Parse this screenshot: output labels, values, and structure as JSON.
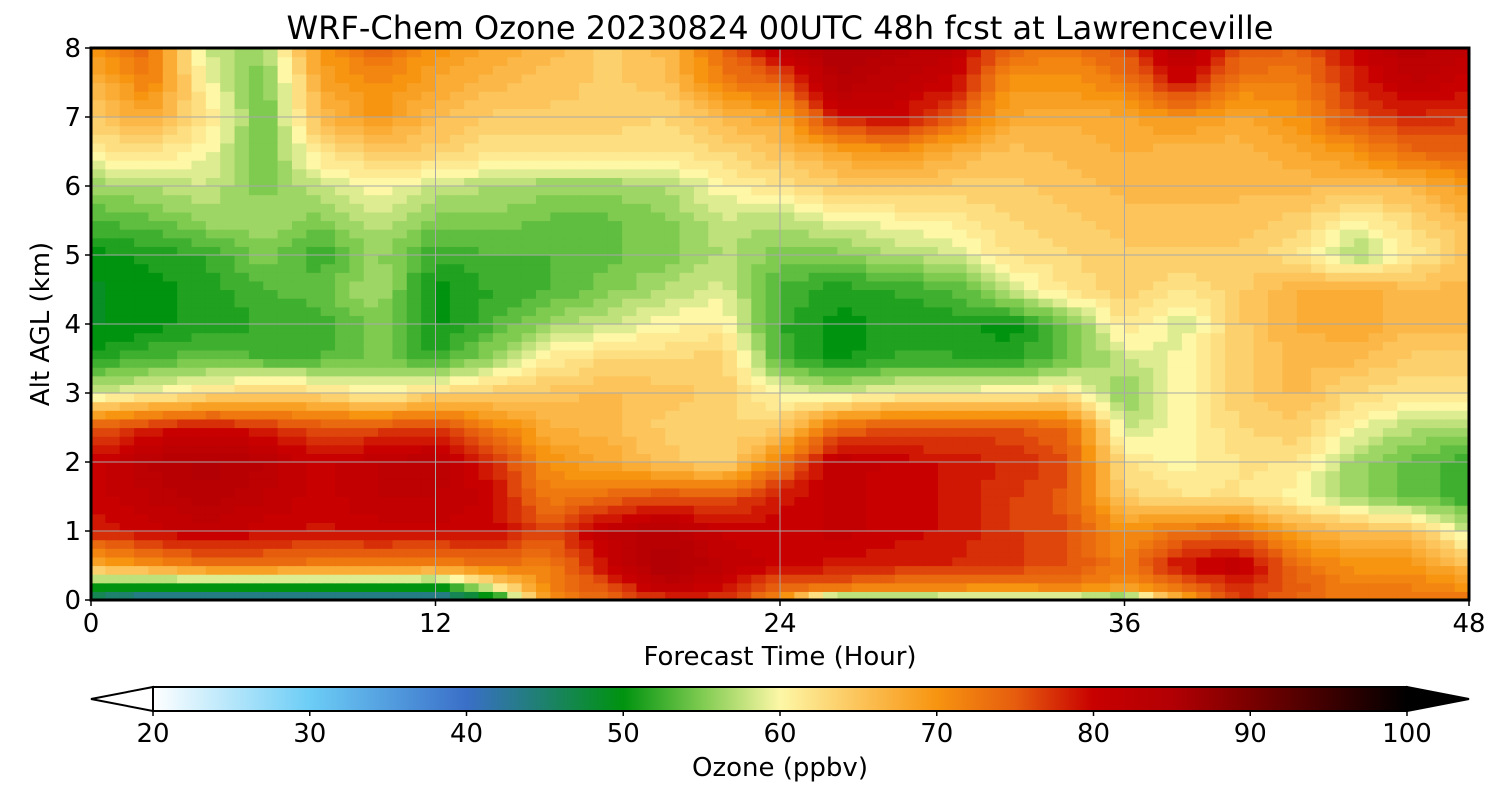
{
  "chart_data": {
    "type": "heatmap",
    "title": "WRF-Chem Ozone  20230824 00UTC 48h fcst at Lawrenceville",
    "xlabel": "Forecast Time (Hour)",
    "ylabel": "Alt AGL (km)",
    "xlim": [
      0,
      48
    ],
    "ylim": [
      0,
      8
    ],
    "xticks": [
      0,
      12,
      24,
      36,
      48
    ],
    "yticks": [
      0,
      1,
      2,
      3,
      4,
      5,
      6,
      7,
      8
    ],
    "grid": true,
    "colorbar": {
      "label": "Ozone  (ppbv)",
      "min": 20,
      "max": 100,
      "ticks": [
        20,
        30,
        40,
        50,
        60,
        70,
        80,
        90,
        100
      ],
      "extend": "both",
      "stops": [
        {
          "v": 20,
          "c": "#ffffff"
        },
        {
          "v": 30,
          "c": "#6ccdf6"
        },
        {
          "v": 40,
          "c": "#3a6fc8"
        },
        {
          "v": 50,
          "c": "#00930f"
        },
        {
          "v": 55,
          "c": "#7ecb50"
        },
        {
          "v": 60,
          "c": "#fdf7a6"
        },
        {
          "v": 65,
          "c": "#fcc45a"
        },
        {
          "v": 70,
          "c": "#f79410"
        },
        {
          "v": 75,
          "c": "#e65d0e"
        },
        {
          "v": 80,
          "c": "#c80000"
        },
        {
          "v": 85,
          "c": "#b20004"
        },
        {
          "v": 90,
          "c": "#7a0000"
        },
        {
          "v": 100,
          "c": "#000000"
        }
      ]
    },
    "x_hours": [
      0,
      2,
      4,
      6,
      8,
      10,
      12,
      14,
      16,
      18,
      20,
      22,
      24,
      26,
      28,
      30,
      32,
      34,
      36,
      38,
      40,
      42,
      44,
      46,
      48
    ],
    "z_km": [
      0,
      0.2,
      0.5,
      1,
      1.5,
      2,
      2.5,
      3,
      3.5,
      4,
      4.5,
      5,
      5.5,
      6,
      6.5,
      7,
      7.5,
      8
    ],
    "ozone_ppbv": [
      [
        45,
        40,
        40,
        40,
        41,
        41,
        40,
        46,
        71,
        74,
        77,
        77,
        71,
        49,
        51,
        52,
        53,
        52,
        50,
        68,
        77,
        74,
        72,
        72,
        74
      ],
      [
        51,
        50,
        50,
        50,
        51,
        51,
        50,
        60,
        72,
        76,
        82,
        80,
        74,
        74,
        72,
        72,
        71,
        73,
        70,
        73,
        78,
        75,
        72,
        72,
        70
      ],
      [
        67,
        70,
        73,
        73,
        72,
        72,
        71,
        73,
        72,
        80,
        86,
        82,
        80,
        79,
        78,
        78,
        77,
        76,
        72,
        80,
        82,
        74,
        70,
        70,
        66
      ],
      [
        78,
        80,
        81,
        80,
        79,
        80,
        80,
        80,
        76,
        82,
        84,
        80,
        80,
        81,
        80,
        79,
        77,
        76,
        70,
        73,
        74,
        68,
        66,
        65,
        58
      ],
      [
        80,
        82,
        84,
        82,
        80,
        82,
        82,
        80,
        72,
        74,
        76,
        75,
        79,
        81,
        80,
        79,
        77,
        75,
        64,
        62,
        62,
        60,
        56,
        54,
        52
      ],
      [
        80,
        83,
        85,
        83,
        80,
        82,
        83,
        78,
        70,
        68,
        65,
        63,
        72,
        82,
        80,
        79,
        78,
        76,
        62,
        60,
        62,
        62,
        56,
        54,
        52
      ],
      [
        75,
        78,
        80,
        78,
        76,
        76,
        77,
        72,
        67,
        66,
        64,
        63,
        64,
        74,
        76,
        76,
        76,
        74,
        58,
        60,
        63,
        64,
        60,
        57,
        57
      ],
      [
        58,
        60,
        62,
        64,
        63,
        60,
        63,
        64,
        65,
        66,
        65,
        64,
        60,
        58,
        60,
        60,
        61,
        62,
        55,
        60,
        64,
        66,
        63,
        62,
        62
      ],
      [
        51,
        53,
        54,
        53,
        53,
        55,
        52,
        56,
        61,
        63,
        63,
        64,
        53,
        50,
        52,
        52,
        51,
        54,
        58,
        60,
        64,
        66,
        66,
        64,
        64
      ],
      [
        49,
        50,
        51,
        52,
        52,
        55,
        50,
        53,
        56,
        58,
        60,
        61,
        52,
        50,
        51,
        51,
        50,
        54,
        62,
        58,
        64,
        67,
        68,
        66,
        66
      ],
      [
        49,
        50,
        51,
        53,
        54,
        57,
        50,
        52,
        53,
        55,
        57,
        59,
        53,
        51,
        52,
        53,
        58,
        62,
        64,
        62,
        64,
        67,
        68,
        66,
        66
      ],
      [
        50,
        51,
        52,
        55,
        52,
        56,
        52,
        53,
        53,
        54,
        55,
        57,
        55,
        55,
        57,
        58,
        62,
        63,
        64,
        64,
        64,
        62,
        56,
        61,
        65
      ],
      [
        53,
        54,
        56,
        57,
        55,
        58,
        55,
        55,
        54,
        54,
        55,
        58,
        57,
        59,
        60,
        61,
        63,
        64,
        65,
        65,
        65,
        64,
        60,
        63,
        66
      ],
      [
        56,
        57,
        58,
        55,
        58,
        60,
        58,
        57,
        56,
        56,
        57,
        60,
        62,
        64,
        65,
        64,
        64,
        65,
        66,
        66,
        66,
        66,
        66,
        66,
        70
      ],
      [
        61,
        62,
        60,
        54,
        62,
        64,
        64,
        62,
        62,
        62,
        62,
        63,
        65,
        68,
        70,
        67,
        65,
        66,
        67,
        66,
        66,
        68,
        70,
        74,
        74
      ],
      [
        64,
        68,
        62,
        54,
        66,
        70,
        66,
        64,
        64,
        64,
        63,
        66,
        68,
        79,
        80,
        75,
        68,
        67,
        68,
        70,
        68,
        70,
        76,
        78,
        77
      ],
      [
        66,
        72,
        60,
        54,
        68,
        71,
        68,
        66,
        65,
        64,
        65,
        72,
        74,
        84,
        82,
        80,
        70,
        70,
        72,
        80,
        72,
        72,
        78,
        82,
        80
      ],
      [
        70,
        74,
        58,
        56,
        70,
        74,
        70,
        68,
        66,
        64,
        66,
        74,
        82,
        86,
        84,
        82,
        74,
        72,
        76,
        84,
        76,
        74,
        80,
        84,
        82
      ]
    ]
  }
}
